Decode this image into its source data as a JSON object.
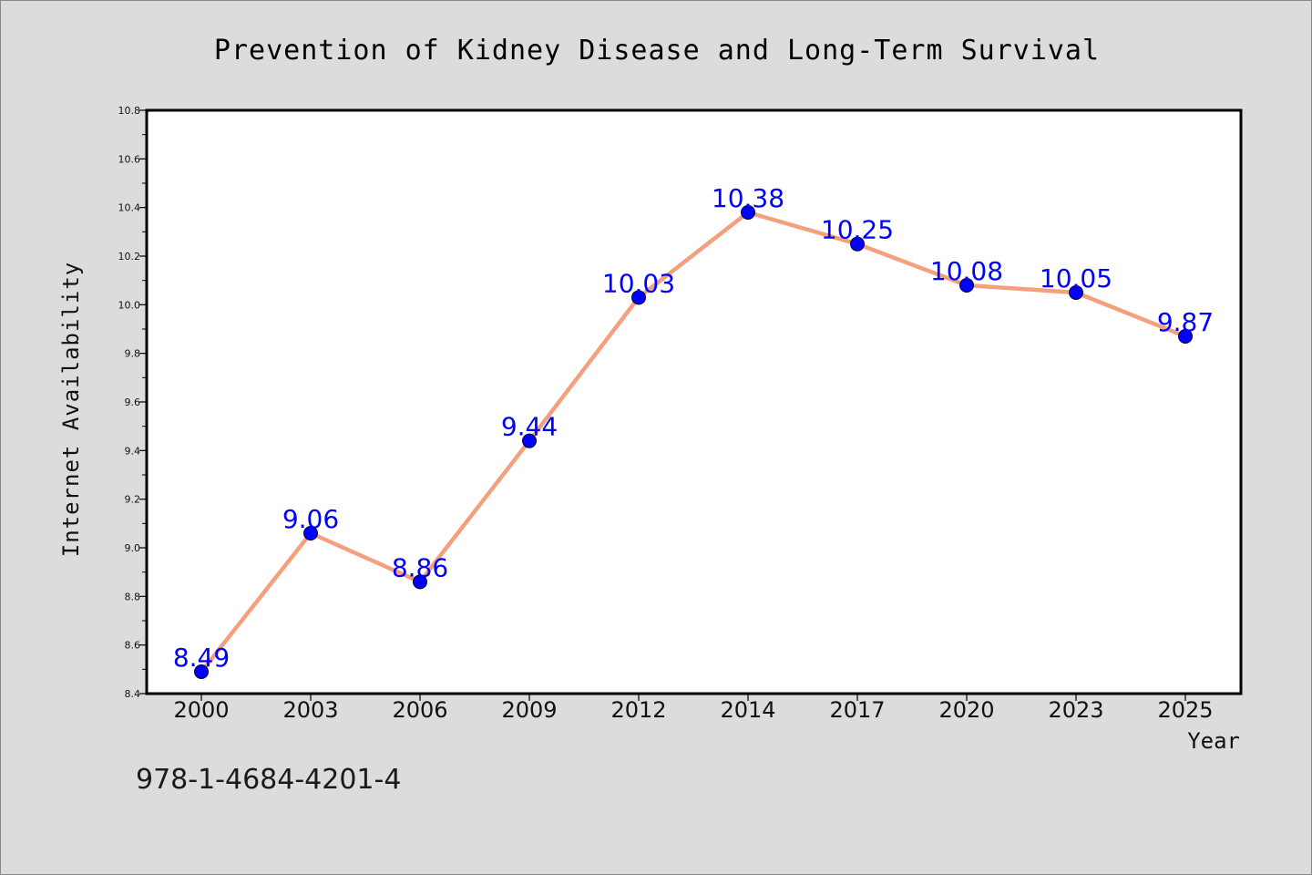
{
  "chart_data": {
    "type": "line",
    "title": "Prevention of Kidney Disease and Long-Term Survival",
    "xlabel": "Year",
    "ylabel": "Internet Availability",
    "categories": [
      "2000",
      "2003",
      "2006",
      "2009",
      "2012",
      "2014",
      "2017",
      "2020",
      "2023",
      "2025"
    ],
    "series": [
      {
        "values": [
          8.49,
          9.06,
          8.86,
          9.44,
          10.03,
          10.38,
          10.25,
          10.08,
          10.05,
          9.87
        ],
        "data_labels": [
          "8.49",
          "9.06",
          "8.86",
          "9.44",
          "10.03",
          "10.38",
          "10.25",
          "10.08",
          "10.05",
          "9.87"
        ]
      }
    ],
    "ylim": [
      8.4,
      10.8
    ],
    "yticks": [
      "8.4",
      "8.6",
      "8.8",
      "9.0",
      "9.2",
      "9.4",
      "9.6",
      "9.8",
      "10.0",
      "10.2",
      "10.4",
      "10.6",
      "10.8"
    ],
    "grid": false,
    "colors": {
      "line": "#f4a07e",
      "marker": "#0000ff",
      "label": "#0000ff"
    }
  },
  "footer": {
    "code": "978-1-4684-4201-4"
  }
}
